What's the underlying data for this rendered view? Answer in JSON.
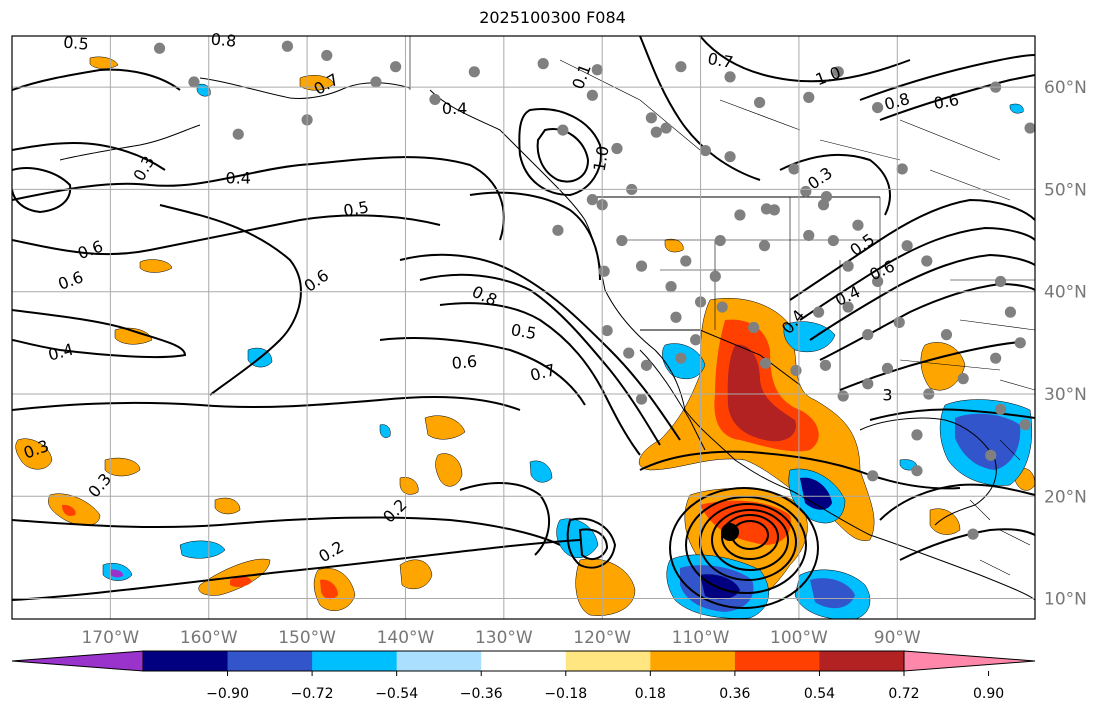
{
  "title": "2025100300 F084",
  "map": {
    "projection": "plate-carree",
    "lon_range": [
      -180,
      -76
    ],
    "lat_range": [
      8,
      65
    ],
    "grid": true,
    "lon_ticks": [
      "170°W",
      "160°W",
      "150°W",
      "140°W",
      "130°W",
      "120°W",
      "110°W",
      "100°W",
      "90°W"
    ],
    "lat_ticks": [
      "60°N",
      "50°N",
      "40°N",
      "30°N",
      "20°N",
      "10°N"
    ],
    "storm_marker": {
      "lon": -107.0,
      "lat": 16.5
    },
    "contour_labels": [
      "0.5",
      "0.8",
      "0.7",
      "0.6",
      "0.4",
      "0.3",
      "0.6",
      "0.4",
      "0.5",
      "0.6",
      "0.4",
      "0.5",
      "0.6",
      "0.7",
      "0.8",
      "0.3",
      "0.2",
      "0.2",
      "1.0",
      "0.1",
      "0.7",
      "1.0",
      "0.8",
      "0.6",
      "0.3",
      "0.5",
      "0.6",
      "0.4",
      "0.4",
      "3",
      "0.3"
    ]
  },
  "colorbar": {
    "colors": [
      "#9933cc",
      "#000080",
      "#3355cc",
      "#00bfff",
      "#aadfff",
      "#ffffff",
      "#ffe680",
      "#ffa500",
      "#ff4000",
      "#b22222",
      "#ff88aa"
    ],
    "tick_labels": [
      "−0.90",
      "−0.72",
      "−0.54",
      "−0.36",
      "−0.18",
      "0.18",
      "0.36",
      "0.54",
      "0.72",
      "0.90"
    ]
  },
  "colors": {
    "contour": "#000000",
    "grid": "#aaaaaa",
    "station_dot": "#808080",
    "storm_marker": "#000000"
  }
}
